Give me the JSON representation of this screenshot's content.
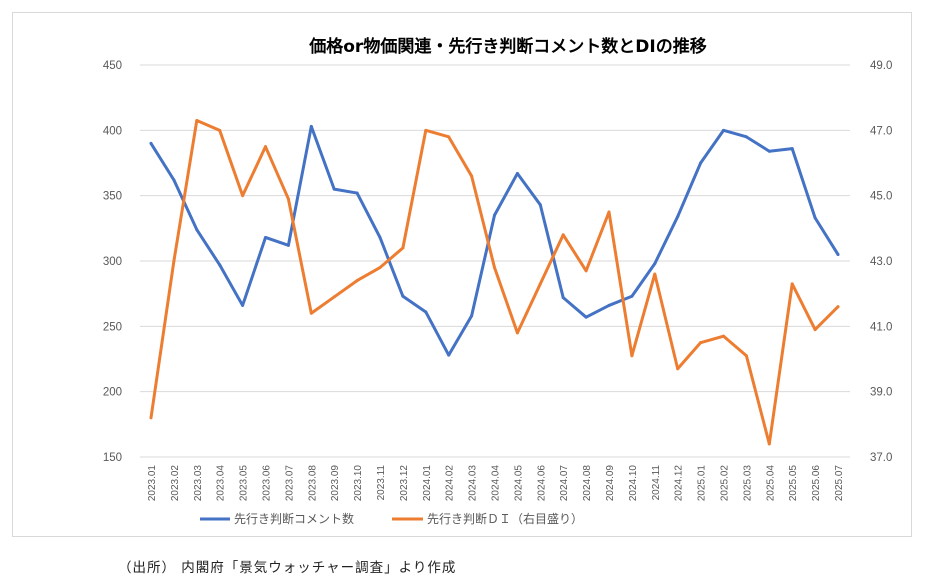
{
  "chart_data": {
    "type": "line",
    "title": "価格or物価関連・先行き判断コメント数とDIの推移",
    "categories": [
      "2023.01",
      "2023.02",
      "2023.03",
      "2023.04",
      "2023.05",
      "2023.06",
      "2023.07",
      "2023.08",
      "2023.09",
      "2023.10",
      "2023.11",
      "2023.12",
      "2024.01",
      "2024.02",
      "2024.03",
      "2024.04",
      "2024.05",
      "2024.06",
      "2024.07",
      "2024.08",
      "2024.09",
      "2024.10",
      "2024.11",
      "2024.12",
      "2025.01",
      "2025.02",
      "2025.03",
      "2025.04",
      "2025.05",
      "2025.06",
      "2025.07"
    ],
    "y_left": {
      "ylim": [
        150,
        450
      ],
      "ticks": [
        "150",
        "200",
        "250",
        "300",
        "350",
        "400",
        "450"
      ]
    },
    "y_right": {
      "ylim": [
        37.0,
        49.0
      ],
      "ticks": [
        "37.0",
        "39.0",
        "41.0",
        "43.0",
        "45.0",
        "47.0",
        "49.0"
      ]
    },
    "grid": true,
    "legend_position": "bottom",
    "series": [
      {
        "name": "先行き判断コメント数",
        "axis": "left",
        "color": "#4472C4",
        "values": [
          390,
          362,
          324,
          297,
          266,
          318,
          312,
          403,
          355,
          352,
          318,
          273,
          261,
          228,
          258,
          335,
          367,
          343,
          272,
          257,
          266,
          273,
          298,
          334,
          375,
          400,
          395,
          384,
          386,
          333,
          305
        ]
      },
      {
        "name": "先行き判断ＤＩ（右目盛り）",
        "axis": "right",
        "color": "#ED7D31",
        "values": [
          38.2,
          43.0,
          47.3,
          47.0,
          45.0,
          46.5,
          44.9,
          41.4,
          41.9,
          42.4,
          42.8,
          43.4,
          47.0,
          46.8,
          45.6,
          42.8,
          40.8,
          42.3,
          43.8,
          42.7,
          44.5,
          40.1,
          42.6,
          39.7,
          40.5,
          40.7,
          40.1,
          37.4,
          42.3,
          40.9,
          41.6
        ]
      }
    ]
  },
  "source_note": "（出所） 内閣府「景気ウォッチャー調査」より作成"
}
